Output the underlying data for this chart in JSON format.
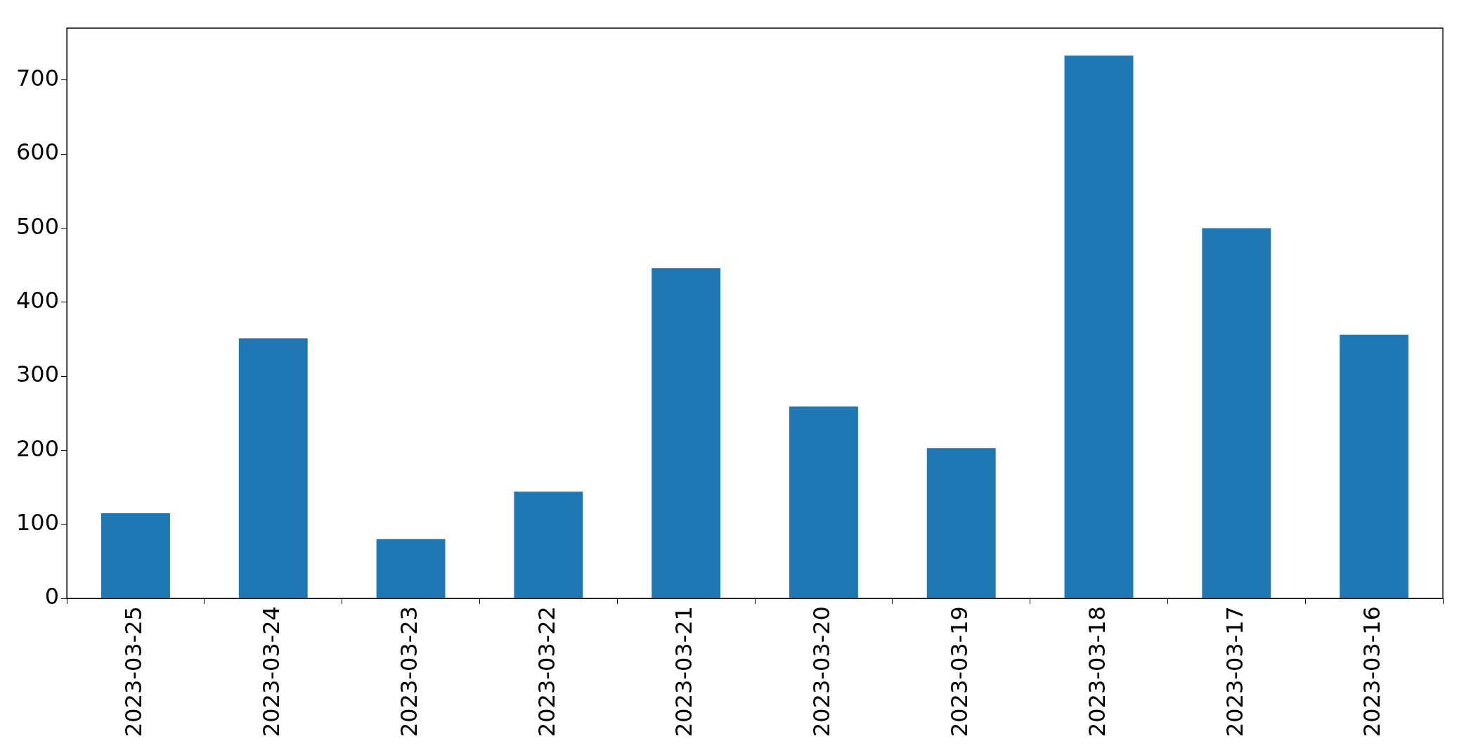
{
  "chart_data": {
    "type": "bar",
    "categories": [
      "2023-03-25",
      "2023-03-24",
      "2023-03-23",
      "2023-03-22",
      "2023-03-21",
      "2023-03-20",
      "2023-03-19",
      "2023-03-18",
      "2023-03-17",
      "2023-03-16"
    ],
    "values": [
      115,
      351,
      80,
      144,
      446,
      259,
      203,
      733,
      500,
      356
    ],
    "color": "#1f77b4",
    "ylim": [
      0,
      770
    ],
    "yticks": [
      0,
      100,
      200,
      300,
      400,
      500,
      600,
      700
    ]
  }
}
